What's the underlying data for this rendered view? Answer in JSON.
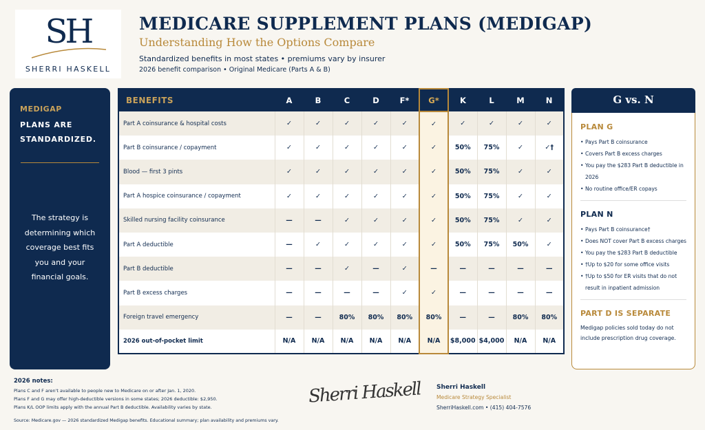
{
  "logo": {
    "monogram": "SH",
    "name": "SHERRI HASKELL"
  },
  "header": {
    "title": "MEDICARE SUPPLEMENT PLANS (MEDIGAP)",
    "subtitle": "Understanding How the Options Compare",
    "line1": "Standardized benefits in most states • premiums vary by insurer",
    "line2": "2026 benefit comparison • Original Medicare (Parts A & B)"
  },
  "left_panel": {
    "kicker": "MEDIGAP",
    "heading": "PLANS ARE STANDARDIZED.",
    "body": "The strategy is determining which coverage best fits you and your financial goals."
  },
  "table": {
    "header": "BENEFITS",
    "plans": [
      "A",
      "B",
      "C",
      "D",
      "F*",
      "G*",
      "K",
      "L",
      "M",
      "N"
    ],
    "rows": [
      {
        "label": "Part A coinsurance & hospital costs",
        "cells": [
          "✓",
          "✓",
          "✓",
          "✓",
          "✓",
          "✓",
          "✓",
          "✓",
          "✓",
          "✓"
        ]
      },
      {
        "label": "Part B coinsurance / copayment",
        "cells": [
          "✓",
          "✓",
          "✓",
          "✓",
          "✓",
          "✓",
          "50%",
          "75%",
          "✓",
          "✓†"
        ]
      },
      {
        "label": "Blood — first 3 pints",
        "cells": [
          "✓",
          "✓",
          "✓",
          "✓",
          "✓",
          "✓",
          "50%",
          "75%",
          "✓",
          "✓"
        ]
      },
      {
        "label": "Part A hospice coinsurance / copayment",
        "cells": [
          "✓",
          "✓",
          "✓",
          "✓",
          "✓",
          "✓",
          "50%",
          "75%",
          "✓",
          "✓"
        ]
      },
      {
        "label": "Skilled nursing facility coinsurance",
        "cells": [
          "—",
          "—",
          "✓",
          "✓",
          "✓",
          "✓",
          "50%",
          "75%",
          "✓",
          "✓"
        ]
      },
      {
        "label": "Part A deductible",
        "cells": [
          "—",
          "✓",
          "✓",
          "✓",
          "✓",
          "✓",
          "50%",
          "75%",
          "50%",
          "✓"
        ]
      },
      {
        "label": "Part B deductible",
        "cells": [
          "—",
          "—",
          "✓",
          "—",
          "✓",
          "—",
          "—",
          "—",
          "—",
          "—"
        ]
      },
      {
        "label": "Part B excess charges",
        "cells": [
          "—",
          "—",
          "—",
          "—",
          "✓",
          "✓",
          "—",
          "—",
          "—",
          "—"
        ]
      },
      {
        "label": "Foreign travel emergency",
        "cells": [
          "—",
          "—",
          "80%",
          "80%",
          "80%",
          "80%",
          "—",
          "—",
          "80%",
          "80%"
        ]
      },
      {
        "label": "2026 out-of-pocket limit",
        "cells": [
          "N/A",
          "N/A",
          "N/A",
          "N/A",
          "N/A",
          "N/A",
          "$8,000",
          "$4,000",
          "N/A",
          "N/A"
        ]
      }
    ]
  },
  "right_panel": {
    "title": "G vs. N",
    "sections": [
      {
        "heading": "PLAN G",
        "items": [
          "Pays Part B coinsurance",
          "Covers Part B excess charges",
          "You pay the $283 Part B deductible in 2026",
          "No routine office/ER copays"
        ]
      },
      {
        "heading": "PLAN N",
        "items": [
          "Pays Part B coinsurance†",
          "Does NOT cover Part B excess charges",
          "You pay the $283 Part B deductible",
          "†Up to $20 for some office visits",
          "†Up to $50 for ER visits that do not result in inpatient admission"
        ]
      },
      {
        "heading": "PART D IS SEPARATE",
        "text": "Medigap policies sold today do not include prescription drug coverage."
      }
    ]
  },
  "footer": {
    "notes_title": "2026 notes:",
    "notes": [
      "Plans C and F aren't available to people new to Medicare on or after Jan. 1, 2020.",
      "Plans F and G may offer high-deductible versions in some states; 2026 deductible: $2,950.",
      "Plans K/L OOP limits apply with the annual Part B deductible. Availability varies by state."
    ],
    "source": "Source: Medicare.gov — 2026 standardized Medigap benefits. Educational summary; plan availability and premiums vary.",
    "signature": "Sherri Haskell",
    "name": "Sherri Haskell",
    "role": "Medicare Strategy Specialist",
    "contact": "SherriHaskell.com  •  (415) 404-7576"
  }
}
